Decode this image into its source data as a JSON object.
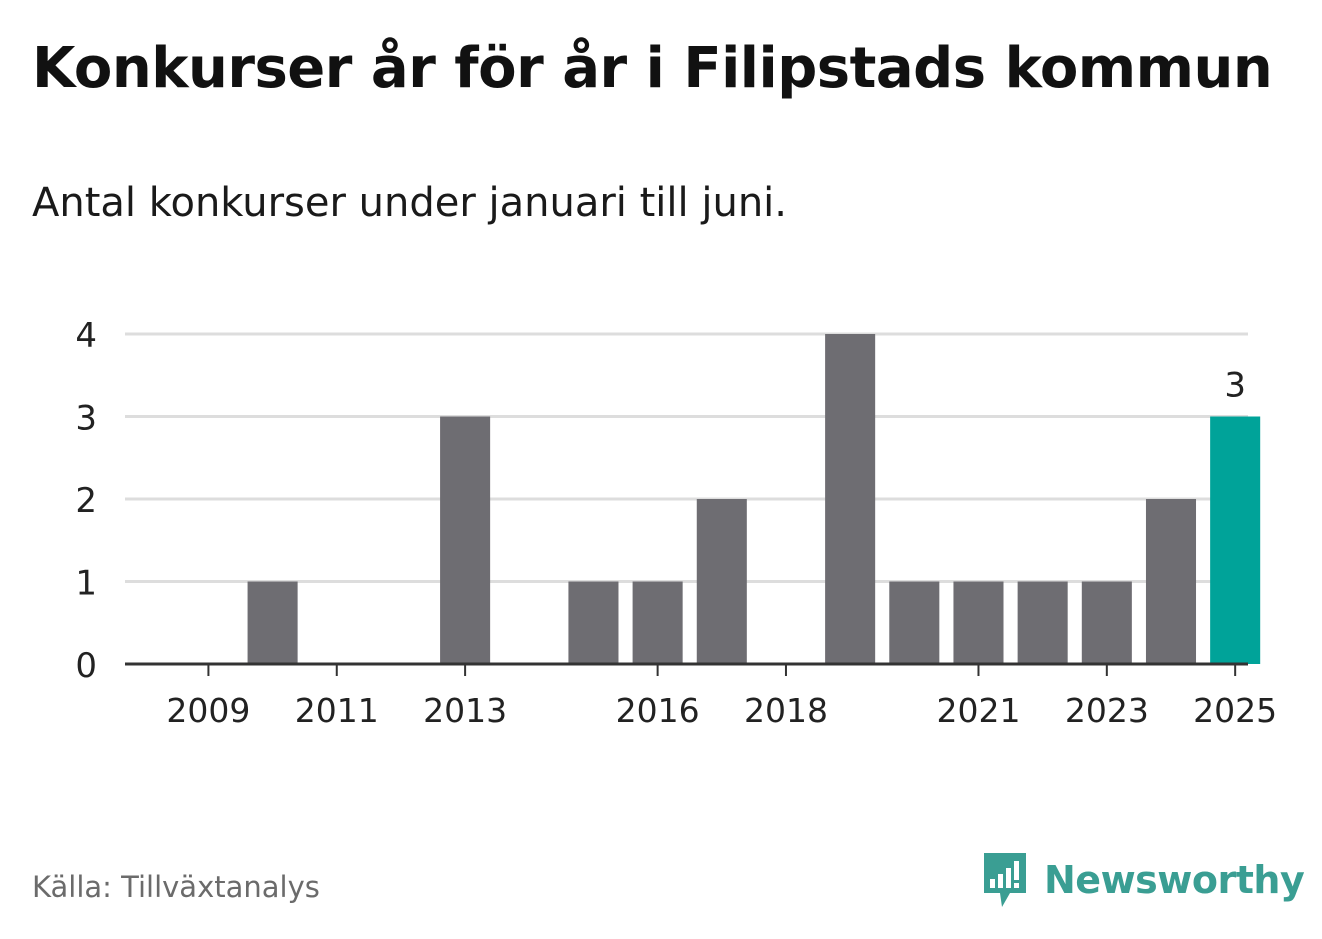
{
  "title": "Konkurser år för år i Filipstads kommun",
  "subtitle": "Antal konkurser under januari till juni.",
  "source": "Källa: Tillväxtanalys",
  "brand": {
    "name": "Newsworthy",
    "icon": "newsworthy-logo-icon",
    "color": "#3a9e93"
  },
  "colors": {
    "bar": "#6e6d72",
    "highlight": "#00a399",
    "grid": "#dddddd",
    "axis": "#333333"
  },
  "chart_data": {
    "type": "bar",
    "categories": [
      "2009",
      "2010",
      "2011",
      "2012",
      "2013",
      "2014",
      "2015",
      "2016",
      "2017",
      "2018",
      "2019",
      "2020",
      "2021",
      "2022",
      "2023",
      "2024",
      "2025"
    ],
    "values": [
      0,
      1,
      0,
      0,
      3,
      0,
      1,
      1,
      2,
      0,
      4,
      1,
      1,
      1,
      1,
      2,
      3
    ],
    "highlight_index": 16,
    "highlight_label": "3",
    "x_tick_labels": [
      "2009",
      "2011",
      "2013",
      "2016",
      "2018",
      "2021",
      "2023",
      "2025"
    ],
    "y_ticks": [
      0,
      1,
      2,
      3,
      4
    ],
    "ylim": [
      0,
      4
    ],
    "xlabel": "",
    "ylabel": "",
    "grid": true,
    "legend": "none"
  }
}
